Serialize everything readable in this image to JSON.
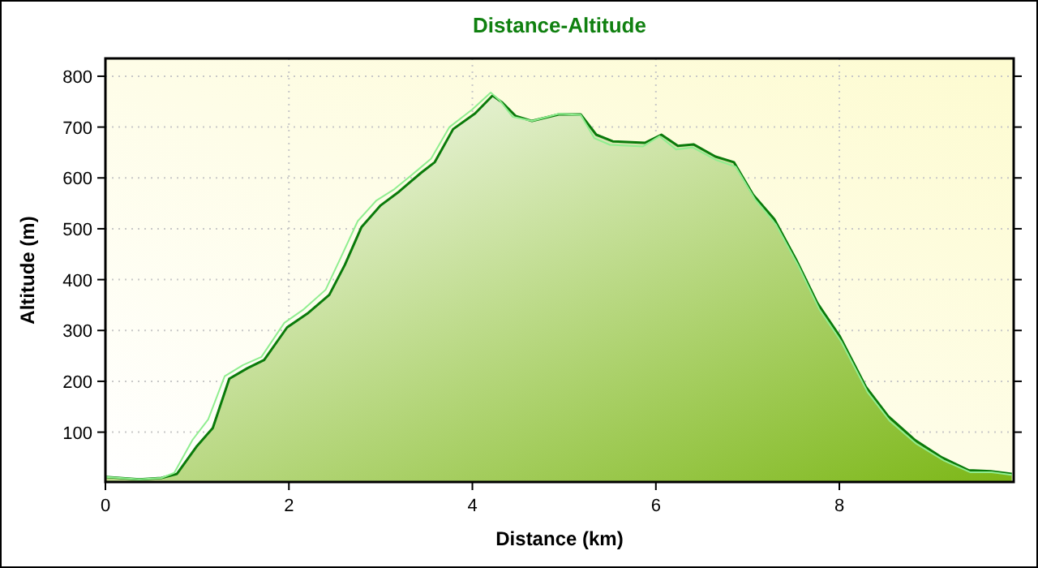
{
  "chart_data": {
    "type": "area",
    "title": "Distance-Altitude",
    "xlabel": "Distance (km)",
    "ylabel": "Altitude (m)",
    "xlim": [
      0,
      9.9
    ],
    "ylim": [
      2,
      835
    ],
    "xticks": [
      0,
      2,
      4,
      6,
      8
    ],
    "yticks": [
      100,
      200,
      300,
      400,
      500,
      600,
      700,
      800
    ],
    "grid": true,
    "series": [
      {
        "color": "#90ee90",
        "type": "line",
        "x": [
          0,
          0.37,
          0.61,
          0.75,
          0.95,
          1.12,
          1.3,
          1.5,
          1.7,
          1.95,
          2.15,
          2.4,
          2.57,
          2.75,
          2.95,
          3.15,
          3.4,
          3.55,
          3.75,
          4.0,
          4.2,
          4.3,
          4.44,
          4.65,
          4.94,
          5.18,
          5.33,
          5.5,
          5.86,
          6.04,
          6.22,
          6.4,
          6.66,
          6.87,
          7.08,
          7.31,
          7.55,
          7.78,
          8.02,
          8.31,
          8.55,
          8.84,
          9.14,
          9.43,
          9.66,
          9.88
        ],
        "values": [
          12,
          7,
          10,
          20,
          85,
          125,
          210,
          232,
          248,
          315,
          340,
          380,
          445,
          515,
          555,
          578,
          615,
          638,
          700,
          735,
          768,
          752,
          720,
          712,
          726,
          724,
          678,
          665,
          662,
          682,
          656,
          660,
          635,
          622,
          558,
          508,
          428,
          342,
          278,
          178,
          122,
          77,
          44,
          21,
          21,
          16
        ]
      },
      {
        "color": "#0a7a0a",
        "x": [
          0,
          0.37,
          0.61,
          0.78,
          0.99,
          1.17,
          1.35,
          1.55,
          1.73,
          1.98,
          2.2,
          2.44,
          2.61,
          2.79,
          3.0,
          3.2,
          3.44,
          3.59,
          3.79,
          4.03,
          4.22,
          4.32,
          4.47,
          4.65,
          4.94,
          5.18,
          5.35,
          5.53,
          5.88,
          6.06,
          6.24,
          6.41,
          6.65,
          6.85,
          7.06,
          7.29,
          7.53,
          7.76,
          8.0,
          8.29,
          8.53,
          8.82,
          9.12,
          9.41,
          9.65,
          9.88
        ],
        "values": [
          12,
          7,
          10,
          18,
          71,
          108,
          205,
          226,
          242,
          306,
          333,
          370,
          429,
          503,
          546,
          573,
          610,
          631,
          696,
          727,
          762,
          749,
          722,
          712,
          725,
          725,
          685,
          672,
          669,
          685,
          663,
          666,
          642,
          631,
          567,
          519,
          439,
          354,
          290,
          189,
          132,
          85,
          50,
          25,
          23,
          18
        ]
      }
    ]
  }
}
